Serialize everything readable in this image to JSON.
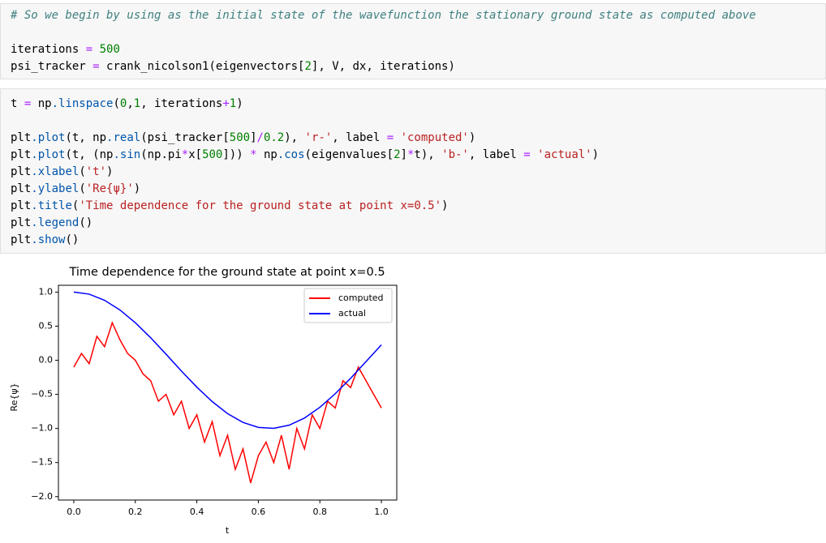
{
  "cells": [
    {
      "blocks": [
        [
          "# So we begin by using as the initial state of the wavefunction the stationary ground state as computed above"
        ],
        [
          "iterations = 500",
          "psi_tracker = crank_nicolson1(eigenvectors[2], V, dx, iterations)"
        ]
      ]
    },
    {
      "blocks": [
        [
          "t = np.linspace(0,1, iterations+1)"
        ],
        [
          "plt.plot(t, np.real(psi_tracker[500]/0.2), 'r-', label = 'computed')",
          "plt.plot(t, (np.sin(np.pi*x[500])) * np.cos(eigenvalues[2]*t), 'b-', label = 'actual')",
          "plt.xlabel('t')",
          "plt.ylabel('Re{ψ}')",
          "plt.title('Time dependence for the ground state at point x=0.5')",
          "plt.legend()",
          "plt.show()"
        ]
      ]
    }
  ],
  "chart_data": {
    "type": "line",
    "title": "Time dependence for the ground state at point x=0.5",
    "x_label": "t",
    "y_label": "Re{ψ}",
    "xlim": [
      -0.05,
      1.05
    ],
    "ylim": [
      -2.05,
      1.1
    ],
    "xticks": [
      {
        "value": 0,
        "label": "0.0"
      },
      0.2,
      0.4,
      0.6,
      0.8,
      {
        "value": 1,
        "label": "1.0"
      }
    ],
    "yticks": [
      {
        "value": 1,
        "label": "1.0"
      },
      0.5,
      {
        "value": 0,
        "label": "0.0"
      },
      {
        "value": -0.5,
        "label": "−0.5"
      },
      {
        "value": -1,
        "label": "−1.0"
      },
      {
        "value": -1.5,
        "label": "−1.5"
      },
      {
        "value": -2,
        "label": "−2.0"
      }
    ],
    "legend": "upper right",
    "series": [
      {
        "name": "computed",
        "color": "#ff0000",
        "x": [
          0,
          0.025,
          0.05,
          0.075,
          0.1,
          0.125,
          0.15,
          0.175,
          0.2,
          0.225,
          0.25,
          0.275,
          0.3,
          0.325,
          0.35,
          0.375,
          0.4,
          0.425,
          0.45,
          0.475,
          0.5,
          0.525,
          0.55,
          0.575,
          0.6,
          0.625,
          0.65,
          0.675,
          0.7,
          0.725,
          0.75,
          0.775,
          0.8,
          0.825,
          0.85,
          0.875,
          0.9,
          0.925,
          0.95,
          0.975,
          1
        ],
        "values": [
          -0.1,
          0.1,
          -0.05,
          0.35,
          0.2,
          0.55,
          0.3,
          0.1,
          0.0,
          -0.2,
          -0.3,
          -0.6,
          -0.5,
          -0.8,
          -0.6,
          -1.0,
          -0.8,
          -1.2,
          -0.9,
          -1.4,
          -1.1,
          -1.6,
          -1.3,
          -1.8,
          -1.4,
          -1.2,
          -1.5,
          -1.1,
          -1.6,
          -1.0,
          -1.3,
          -0.8,
          -1.0,
          -0.6,
          -0.7,
          -0.3,
          -0.4,
          -0.1,
          -0.3,
          -0.5,
          -0.7
        ]
      },
      {
        "name": "actual",
        "color": "#0000ff",
        "x": [
          0,
          0.05,
          0.1,
          0.15,
          0.2,
          0.25,
          0.3,
          0.35,
          0.4,
          0.45,
          0.5,
          0.55,
          0.6,
          0.65,
          0.7,
          0.75,
          0.8,
          0.85,
          0.9,
          0.95,
          1
        ],
        "values": [
          1.0,
          0.97,
          0.88,
          0.738,
          0.551,
          0.33,
          0.089,
          -0.158,
          -0.394,
          -0.606,
          -0.783,
          -0.911,
          -0.984,
          -0.998,
          -0.952,
          -0.847,
          -0.69,
          -0.49,
          -0.264,
          -0.019,
          0.226
        ]
      }
    ]
  }
}
